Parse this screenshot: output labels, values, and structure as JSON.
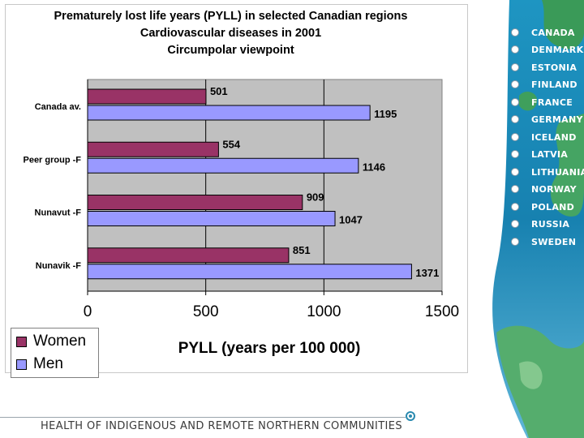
{
  "chart_data": {
    "type": "bar",
    "orientation": "horizontal",
    "title": [
      "Prematurely lost life years (PYLL) in selected Canadian  regions",
      "Cardiovascular diseases in 2001",
      "Circumpolar viewpoint"
    ],
    "categories": [
      "Canada av.",
      "Peer group -F",
      "Nunavut -F",
      "Nunavik -F"
    ],
    "series": [
      {
        "name": "Women",
        "values": [
          501,
          554,
          909,
          851
        ],
        "color": "#993366"
      },
      {
        "name": "Men",
        "values": [
          1195,
          1146,
          1047,
          1371
        ],
        "color": "#9999FF"
      }
    ],
    "xlabel": "PYLL (years per 100 000)",
    "ylabel": "",
    "xlim": [
      0,
      1500
    ],
    "xticks": [
      "0",
      "500",
      "1000",
      "1500"
    ],
    "grid": true,
    "plot_background": "#C0C0C0",
    "legend_position": "bottom-left"
  },
  "sidebar": {
    "countries": [
      "CANADA",
      "DENMARK",
      "ESTONIA",
      "FINLAND",
      "FRANCE",
      "GERMANY",
      "ICELAND",
      "LATVIA",
      "LITHUANIA",
      "NORWAY",
      "POLAND",
      "RUSSIA",
      "SWEDEN"
    ]
  },
  "footer": {
    "text": "HEALTH OF INDIGENOUS AND REMOTE NORTHERN COMMUNITIES"
  },
  "colors": {
    "sea": "#1a86b4",
    "land": "#3f9f5c",
    "accent": "#2a8ab0"
  }
}
